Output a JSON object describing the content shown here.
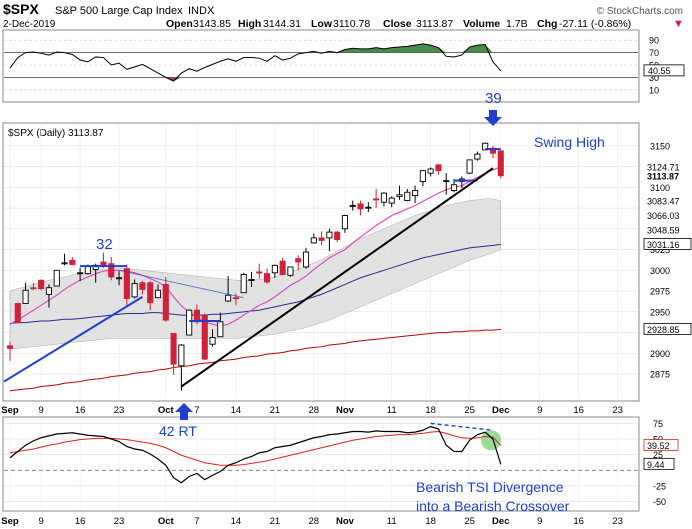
{
  "header": {
    "symbol": "$SPX",
    "name": "S&P 500 Large Cap Index",
    "exchange": "INDX",
    "date": "2-Dec-2019",
    "open_label": "Open",
    "open": "3143.85",
    "high_label": "High",
    "high": "3144.31",
    "low_label": "Low",
    "low": "3110.78",
    "close_label": "Close",
    "close": "3113.87",
    "volume_label": "Volume",
    "volume": "1.7B",
    "chg_label": "Chg",
    "chg": "-27.11 (-0.86%)",
    "brand": "© StockCharts.com"
  },
  "colors": {
    "up": "#000000",
    "down": "#d0203a",
    "sma_short": "#e040c0",
    "sma_mid": "#2a2a90",
    "sma_long": "#c00000",
    "band": "#d8d8d8",
    "rsi_fill": "#4a8a4a",
    "rsi_low_fill": "#8a4a70",
    "annot_blue": "#1e3fd0",
    "tsi": "#000000",
    "tsi_signal": "#e02020",
    "highlight": "#7ad070"
  },
  "chart_data": [
    {
      "panel": "rsi",
      "type": "line",
      "levels": [
        90,
        70,
        50,
        30,
        10
      ],
      "level_labels": [
        "90",
        "70",
        "50",
        "30",
        "10"
      ],
      "last_value_label": "40.55",
      "x": [
        "Sep 3",
        "Sep 4",
        "Sep 5",
        "Sep 6",
        "Sep 9",
        "Sep 10",
        "Sep 11",
        "Sep 12",
        "Sep 13",
        "Sep 16",
        "Sep 17",
        "Sep 18",
        "Sep 19",
        "Sep 20",
        "Sep 23",
        "Sep 24",
        "Sep 25",
        "Sep 26",
        "Sep 27",
        "Sep 30",
        "Oct 1",
        "Oct 2",
        "Oct 3",
        "Oct 4",
        "Oct 7",
        "Oct 8",
        "Oct 9",
        "Oct 10",
        "Oct 11",
        "Oct 14",
        "Oct 15",
        "Oct 16",
        "Oct 17",
        "Oct 18",
        "Oct 21",
        "Oct 22",
        "Oct 23",
        "Oct 24",
        "Oct 25",
        "Oct 28",
        "Oct 29",
        "Oct 30",
        "Oct 31",
        "Nov 1",
        "Nov 4",
        "Nov 5",
        "Nov 6",
        "Nov 7",
        "Nov 8",
        "Nov 11",
        "Nov 12",
        "Nov 13",
        "Nov 14",
        "Nov 15",
        "Nov 18",
        "Nov 19",
        "Nov 20",
        "Nov 21",
        "Nov 22",
        "Nov 25",
        "Nov 26",
        "Nov 27",
        "Nov 29",
        "Dec 2"
      ],
      "values": [
        45,
        62,
        70,
        71,
        69,
        66,
        71,
        70,
        67,
        58,
        55,
        63,
        62,
        50,
        53,
        43,
        47,
        51,
        44,
        37,
        30,
        24,
        37,
        44,
        40,
        46,
        51,
        56,
        60,
        56,
        62,
        62,
        61,
        56,
        65,
        58,
        61,
        68,
        70,
        72,
        69,
        72,
        70,
        75,
        77,
        76,
        76,
        78,
        76,
        78,
        79,
        80,
        82,
        84,
        82,
        78,
        64,
        63,
        66,
        79,
        82,
        83,
        55,
        40.55
      ]
    },
    {
      "panel": "price",
      "type": "candlestick",
      "title": "$SPX (Daily) 3113.87",
      "ylim": [
        2845,
        3175
      ],
      "y_ticks": [
        2875,
        2900,
        2925,
        2950,
        2975,
        3000,
        3025,
        3050,
        3075,
        3100,
        3125,
        3150
      ],
      "y_tick_labels": [
        "2875",
        "2900",
        "",
        "2950",
        "2975",
        "3000",
        "3025",
        "",
        "",
        "3100",
        "",
        "3150"
      ],
      "right_value_labels": [
        {
          "value": 3124.71,
          "label": "3124.71",
          "style": "plain"
        },
        {
          "value": 3113.87,
          "label": "3113.87",
          "style": "bold"
        },
        {
          "value": 3083.47,
          "label": "3083.47",
          "style": "plain"
        },
        {
          "value": 3066.03,
          "label": "3066.03",
          "style": "plain"
        },
        {
          "value": 3048.59,
          "label": "3048.59",
          "style": "plain"
        },
        {
          "value": 3031.16,
          "label": "3031.16",
          "style": "box"
        },
        {
          "value": 2928.85,
          "label": "2928.85",
          "style": "box"
        }
      ],
      "dates": [
        "Sep 3",
        "Sep 4",
        "Sep 5",
        "Sep 6",
        "Sep 9",
        "Sep 10",
        "Sep 11",
        "Sep 12",
        "Sep 13",
        "Sep 16",
        "Sep 17",
        "Sep 18",
        "Sep 19",
        "Sep 20",
        "Sep 23",
        "Sep 24",
        "Sep 25",
        "Sep 26",
        "Sep 27",
        "Sep 30",
        "Oct 1",
        "Oct 2",
        "Oct 3",
        "Oct 4",
        "Oct 7",
        "Oct 8",
        "Oct 9",
        "Oct 10",
        "Oct 11",
        "Oct 14",
        "Oct 15",
        "Oct 16",
        "Oct 17",
        "Oct 18",
        "Oct 21",
        "Oct 22",
        "Oct 23",
        "Oct 24",
        "Oct 25",
        "Oct 28",
        "Oct 29",
        "Oct 30",
        "Oct 31",
        "Nov 1",
        "Nov 4",
        "Nov 5",
        "Nov 6",
        "Nov 7",
        "Nov 8",
        "Nov 11",
        "Nov 12",
        "Nov 13",
        "Nov 14",
        "Nov 15",
        "Nov 18",
        "Nov 19",
        "Nov 20",
        "Nov 21",
        "Nov 22",
        "Nov 25",
        "Nov 26",
        "Nov 27",
        "Nov 29",
        "Dec 2"
      ],
      "open": [
        2909,
        2960,
        2960,
        2979,
        2988,
        2971,
        2981,
        3009,
        3012,
        2996,
        2996,
        3001,
        3010,
        3008,
        2991,
        3002,
        2968,
        2985,
        2985,
        2967,
        2983,
        2924,
        2885,
        2922,
        2952,
        2945,
        2911,
        2920,
        2963,
        2967,
        2973,
        2989,
        2998,
        2996,
        2997,
        3011,
        2994,
        3014,
        3004,
        3033,
        3039,
        3039,
        3046,
        3050,
        3078,
        3080,
        3076,
        3086,
        3082,
        3081,
        3089,
        3084,
        3090,
        3107,
        3117,
        3127,
        3108,
        3096,
        3107,
        3117,
        3134,
        3145,
        3147,
        3143.85
      ],
      "close": [
        2906,
        2937,
        2976,
        2978,
        2978,
        2979,
        3000,
        3009,
        3007,
        2997,
        3005,
        3006,
        3006,
        2992,
        2991,
        2966,
        2984,
        2977,
        2961,
        2976,
        2940,
        2887,
        2910,
        2952,
        2938,
        2893,
        2919,
        2938,
        2970,
        2966,
        2995,
        2989,
        2997,
        2986,
        3006,
        2995,
        3004,
        3010,
        3022,
        3039,
        3036,
        3046,
        3037,
        3066,
        3078,
        3074,
        3076,
        3085,
        3093,
        3087,
        3091,
        3094,
        3096,
        3120,
        3122,
        3120,
        3108,
        3103,
        3110,
        3133,
        3140,
        3153,
        3141,
        3113.87
      ],
      "high": [
        2914,
        2961,
        2985,
        2985,
        2989,
        2983,
        3000,
        3020,
        3016,
        3003,
        3007,
        3008,
        3021,
        3016,
        2999,
        3007,
        2989,
        2987,
        2987,
        2983,
        2992,
        2924,
        2911,
        2953,
        2959,
        2948,
        2929,
        2949,
        2993,
        2972,
        2997,
        2998,
        3008,
        3002,
        3007,
        3015,
        3004,
        3018,
        3027,
        3044,
        3047,
        3050,
        3047,
        3067,
        3084,
        3084,
        3082,
        3098,
        3094,
        3089,
        3102,
        3098,
        3102,
        3121,
        3124,
        3128,
        3117,
        3110,
        3113,
        3133,
        3143,
        3154,
        3150,
        3144.31
      ],
      "low": [
        2891,
        2936,
        2960,
        2976,
        2976,
        2955,
        2981,
        3006,
        3006,
        2987,
        2995,
        2985,
        3003,
        2988,
        2982,
        2957,
        2966,
        2971,
        2952,
        2967,
        2938,
        2874,
        2855,
        2922,
        2935,
        2892,
        2908,
        2920,
        2962,
        2958,
        2973,
        2980,
        2990,
        2984,
        2991,
        2994,
        2992,
        3000,
        3002,
        3032,
        3030,
        3023,
        3034,
        3045,
        3072,
        3066,
        3070,
        3075,
        3077,
        3076,
        3085,
        3083,
        3081,
        3101,
        3113,
        3115,
        3091,
        3094,
        3099,
        3116,
        3132,
        3145,
        3135,
        3110.78
      ],
      "sma_short": [
        2935,
        2940,
        2946,
        2952,
        2958,
        2964,
        2970,
        2977,
        2983,
        2988,
        2992,
        2996,
        2999,
        3000,
        3000,
        2999,
        2997,
        2994,
        2990,
        2986,
        2980,
        2968,
        2957,
        2950,
        2944,
        2938,
        2935,
        2933,
        2935,
        2940,
        2946,
        2952,
        2958,
        2962,
        2968,
        2975,
        2982,
        2987,
        2993,
        3001,
        3008,
        3015,
        3020,
        3025,
        3033,
        3040,
        3047,
        3054,
        3060,
        3066,
        3070,
        3074,
        3078,
        3083,
        3088,
        3093,
        3097,
        3100,
        3102,
        3107,
        3112,
        3117,
        3121,
        3124.71
      ],
      "sma_mid": [
        2936,
        2937,
        2937,
        2938,
        2939,
        2939,
        2940,
        2941,
        2941,
        2942,
        2943,
        2944,
        2945,
        2946,
        2947,
        2948,
        2948,
        2948,
        2949,
        2949,
        2948,
        2947,
        2946,
        2946,
        2946,
        2946,
        2947,
        2947,
        2948,
        2949,
        2950,
        2951,
        2952,
        2954,
        2956,
        2958,
        2960,
        2962,
        2965,
        2968,
        2971,
        2975,
        2979,
        2983,
        2987,
        2991,
        2994,
        2997,
        3000,
        3003,
        3006,
        3009,
        3012,
        3015,
        3017,
        3019,
        3021,
        3023,
        3025,
        3027,
        3028,
        3029,
        3030,
        3031.16
      ],
      "sma_long": [
        2855,
        2856,
        2857,
        2858,
        2860,
        2861,
        2862,
        2864,
        2865,
        2866,
        2868,
        2869,
        2870,
        2872,
        2873,
        2874,
        2876,
        2877,
        2878,
        2880,
        2881,
        2883,
        2884,
        2885,
        2887,
        2888,
        2889,
        2891,
        2892,
        2893,
        2895,
        2896,
        2897,
        2899,
        2900,
        2901,
        2903,
        2904,
        2906,
        2907,
        2908,
        2910,
        2911,
        2912,
        2914,
        2915,
        2916,
        2917,
        2918,
        2919,
        2920,
        2921,
        2922,
        2923,
        2924,
        2925,
        2925,
        2926,
        2926,
        2927,
        2927,
        2928,
        2928,
        2928.85
      ],
      "band_upper": [
        2975,
        2978,
        2980,
        2983,
        2985,
        2988,
        2990,
        2992,
        2994,
        2996,
        2998,
        3000,
        3001,
        3002,
        3002,
        3002,
        3001,
        3000,
        2999,
        2998,
        2997,
        2996,
        2995,
        2994,
        2993,
        2992,
        2991,
        2990,
        2989,
        2988,
        2988,
        2988,
        2989,
        2990,
        2992,
        2995,
        2998,
        3001,
        3005,
        3009,
        3013,
        3018,
        3023,
        3028,
        3033,
        3038,
        3042,
        3046,
        3050,
        3054,
        3058,
        3062,
        3066,
        3069,
        3072,
        3075,
        3078,
        3080,
        3082,
        3084,
        3085,
        3086,
        3086,
        3083.47
      ],
      "band_lower": [
        2905,
        2906,
        2907,
        2908,
        2909,
        2910,
        2911,
        2912,
        2913,
        2914,
        2915,
        2916,
        2917,
        2918,
        2918,
        2918,
        2918,
        2918,
        2918,
        2918,
        2918,
        2918,
        2918,
        2918,
        2918,
        2918,
        2918,
        2918,
        2918,
        2918,
        2919,
        2920,
        2921,
        2922,
        2923,
        2925,
        2927,
        2929,
        2931,
        2934,
        2937,
        2940,
        2944,
        2948,
        2952,
        2956,
        2960,
        2964,
        2968,
        2972,
        2976,
        2980,
        2984,
        2988,
        2992,
        2996,
        3000,
        3004,
        3008,
        3012,
        3015,
        3018,
        3021,
        3025
      ],
      "x_labels": [
        {
          "label": "Sep",
          "index": 0,
          "bold": true
        },
        {
          "label": "9",
          "index": 4
        },
        {
          "label": "16",
          "index": 9
        },
        {
          "label": "23",
          "index": 14
        },
        {
          "label": "Oct",
          "index": 20,
          "bold": true
        },
        {
          "label": "7",
          "index": 24
        },
        {
          "label": "14",
          "index": 29
        },
        {
          "label": "21",
          "index": 34
        },
        {
          "label": "28",
          "index": 39
        },
        {
          "label": "Nov",
          "index": 43,
          "bold": true
        },
        {
          "label": "11",
          "index": 49
        },
        {
          "label": "18",
          "index": 54
        },
        {
          "label": "25",
          "index": 59
        },
        {
          "label": "Dec",
          "index": 63,
          "bold": true
        },
        {
          "label": "9",
          "index": 68
        },
        {
          "label": "16",
          "index": 73
        },
        {
          "label": "23",
          "index": 78
        }
      ],
      "annotations": {
        "label_32": "32",
        "label_39": "39",
        "swing_high": "Swing High",
        "label_42rt": "42 RT"
      }
    },
    {
      "panel": "tsi",
      "type": "line",
      "ylim": [
        -62,
        82
      ],
      "levels": [
        75,
        50,
        25,
        0,
        -25,
        -50
      ],
      "level_labels": [
        "75",
        "50",
        "25",
        "",
        "-25",
        "-50"
      ],
      "last_value_labels": [
        "39.52",
        "9.44"
      ],
      "tsi": [
        20,
        30,
        40,
        47,
        52,
        55,
        58,
        59,
        60,
        58,
        56,
        55,
        54,
        50,
        46,
        38,
        34,
        32,
        26,
        18,
        8,
        -12,
        -20,
        -10,
        -5,
        -15,
        -8,
        -2,
        8,
        12,
        18,
        22,
        28,
        30,
        36,
        38,
        40,
        44,
        48,
        52,
        54,
        57,
        58,
        60,
        62,
        62,
        61,
        63,
        62,
        62,
        62,
        60,
        61,
        64,
        70,
        66,
        40,
        30,
        30,
        48,
        57,
        61,
        50,
        9.44
      ],
      "signal": [
        28,
        30,
        32,
        34,
        37,
        40,
        42,
        45,
        47,
        49,
        50,
        51,
        51,
        51,
        50,
        49,
        47,
        45,
        43,
        40,
        36,
        30,
        24,
        20,
        16,
        12,
        10,
        8,
        8,
        8,
        9,
        11,
        13,
        15,
        18,
        21,
        24,
        27,
        30,
        33,
        36,
        39,
        42,
        45,
        48,
        50,
        52,
        54,
        55,
        56,
        57,
        57,
        58,
        59,
        61,
        62,
        59,
        55,
        52,
        51,
        52,
        54,
        53,
        39.52
      ],
      "x_labels": [
        {
          "label": "Sep",
          "index": 0,
          "bold": true
        },
        {
          "label": "9",
          "index": 4
        },
        {
          "label": "16",
          "index": 9
        },
        {
          "label": "23",
          "index": 14
        },
        {
          "label": "Oct",
          "index": 20,
          "bold": true
        },
        {
          "label": "7",
          "index": 24
        },
        {
          "label": "14",
          "index": 29
        },
        {
          "label": "21",
          "index": 34
        },
        {
          "label": "28",
          "index": 39
        },
        {
          "label": "Nov",
          "index": 43,
          "bold": true
        },
        {
          "label": "11",
          "index": 49
        },
        {
          "label": "18",
          "index": 54
        },
        {
          "label": "25",
          "index": 59
        },
        {
          "label": "Dec",
          "index": 63,
          "bold": true
        },
        {
          "label": "9",
          "index": 68
        },
        {
          "label": "16",
          "index": 73
        },
        {
          "label": "23",
          "index": 78
        }
      ],
      "annotation_line1": "Bearish TSI Divergence",
      "annotation_line2": "into a Bearish Crossover"
    }
  ]
}
